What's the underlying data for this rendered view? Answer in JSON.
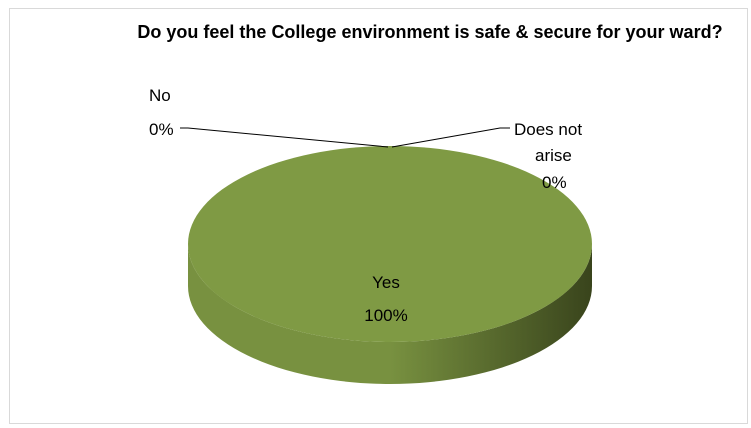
{
  "chart_data": {
    "type": "pie",
    "title": "Do you feel the College environment is safe & secure for your ward?",
    "style": "3d",
    "slices": [
      {
        "label": "Yes",
        "value": 100,
        "pct_label": "100%"
      },
      {
        "label": "No",
        "value": 0,
        "pct_label": "0%"
      },
      {
        "label": "Does not",
        "label_line2": "arise",
        "value": 0,
        "pct_label": "0%"
      }
    ],
    "colors": {
      "top": "#7f9a44",
      "side_light": "#789140",
      "side_dark": "#39441c"
    }
  }
}
